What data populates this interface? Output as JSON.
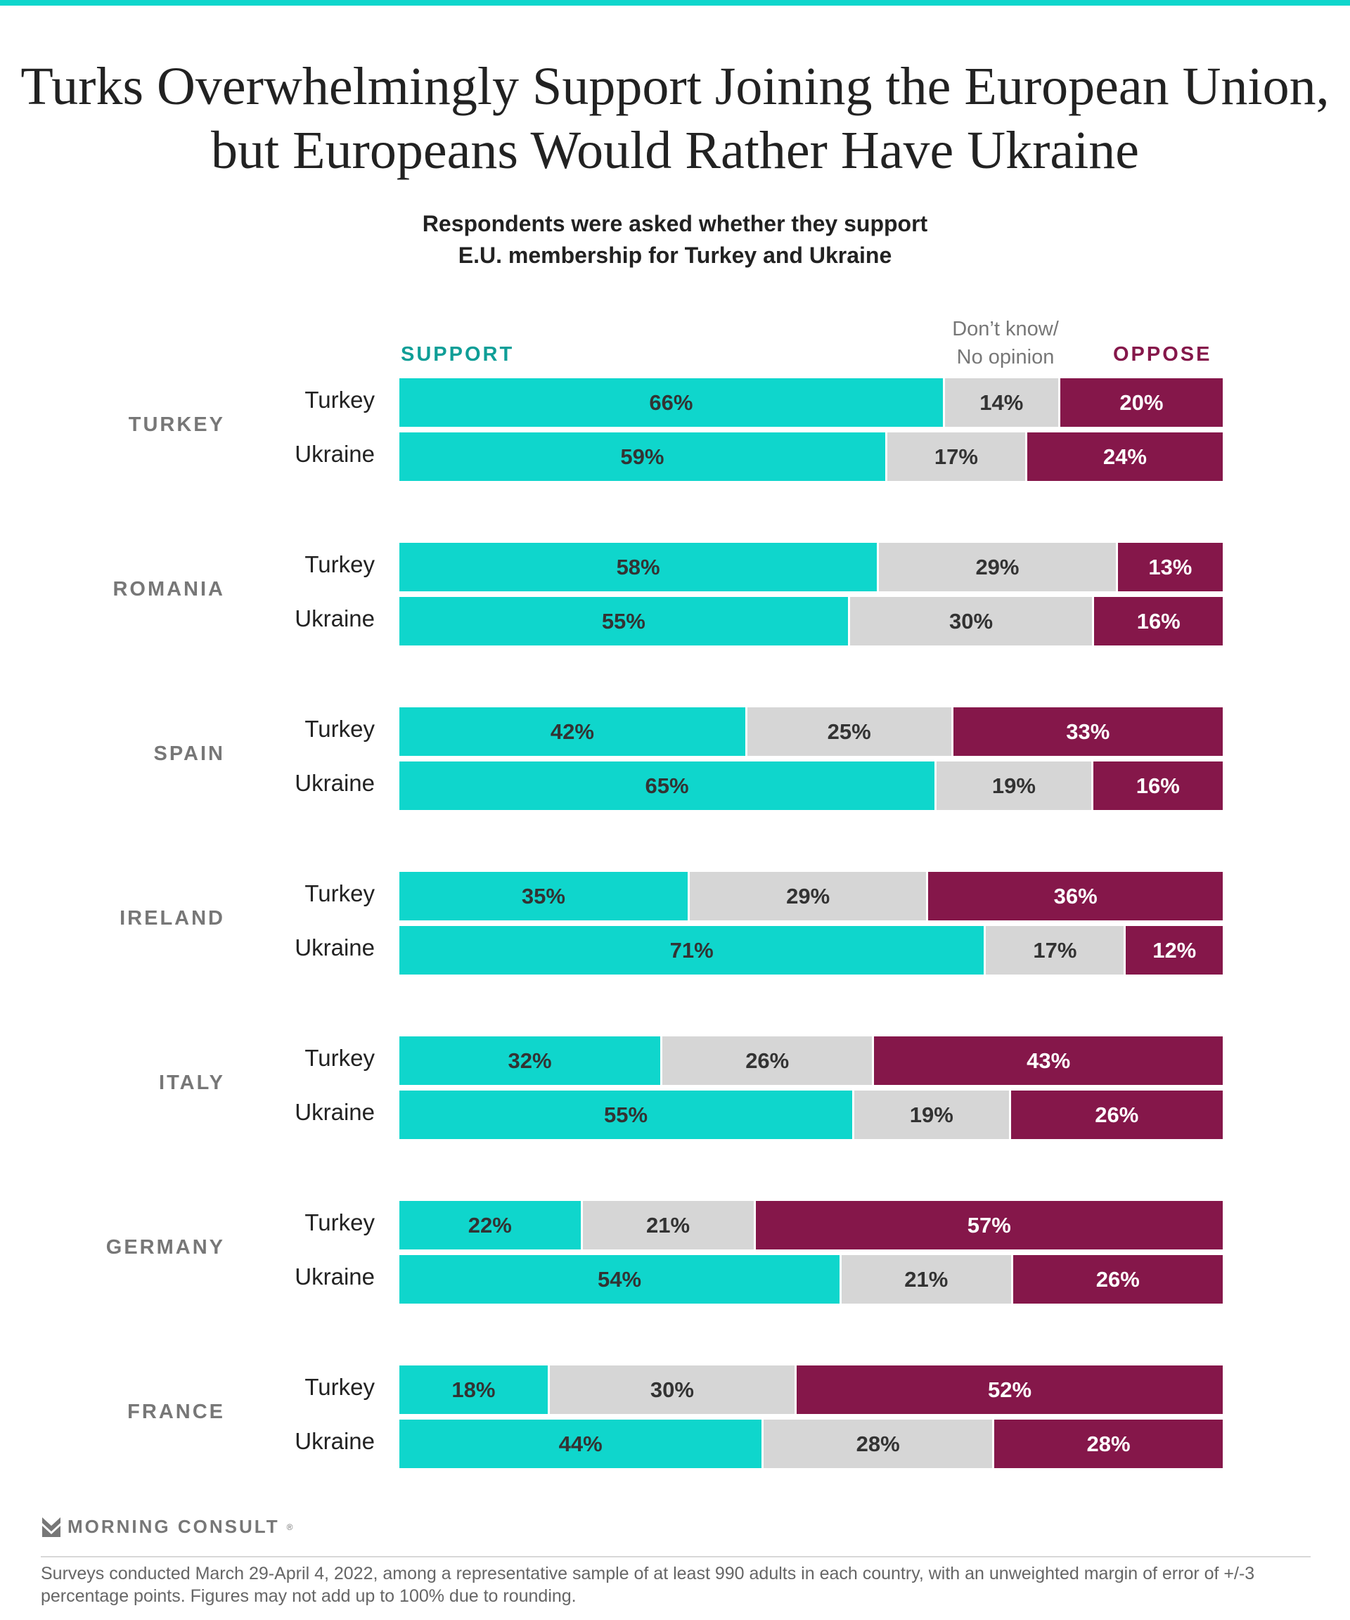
{
  "colors": {
    "accent_bar": "#0fd6cc",
    "support": "#0fd6cc",
    "support_label": "#0f9e97",
    "dont_know": "#d6d6d6",
    "oppose": "#85174a",
    "text_dark": "#333333",
    "text_on_oppose": "#ffffff"
  },
  "chart_data": {
    "type": "bar",
    "orientation": "horizontal-stacked-100",
    "title": "Turks Overwhelmingly Support Joining the European Union, but Europeans Would Rather Have Ukraine",
    "subtitle_lines": [
      "Respondents were asked whether they support",
      "E.U. membership for Turkey and Ukraine"
    ],
    "legend": {
      "support": "SUPPORT",
      "dont_know_lines": [
        "Don’t know/",
        "No opinion"
      ],
      "oppose": "OPPOSE",
      "placement": "top"
    },
    "series": [
      {
        "name": "SUPPORT"
      },
      {
        "name": "Don’t know/No opinion"
      },
      {
        "name": "OPPOSE"
      }
    ],
    "groups": [
      {
        "country": "TURKEY",
        "rows": [
          {
            "label": "Turkey",
            "values": [
              66,
              14,
              20
            ]
          },
          {
            "label": "Ukraine",
            "values": [
              59,
              17,
              24
            ]
          }
        ]
      },
      {
        "country": "ROMANIA",
        "rows": [
          {
            "label": "Turkey",
            "values": [
              58,
              29,
              13
            ]
          },
          {
            "label": "Ukraine",
            "values": [
              55,
              30,
              16
            ]
          }
        ]
      },
      {
        "country": "SPAIN",
        "rows": [
          {
            "label": "Turkey",
            "values": [
              42,
              25,
              33
            ]
          },
          {
            "label": "Ukraine",
            "values": [
              65,
              19,
              16
            ]
          }
        ]
      },
      {
        "country": "IRELAND",
        "rows": [
          {
            "label": "Turkey",
            "values": [
              35,
              29,
              36
            ]
          },
          {
            "label": "Ukraine",
            "values": [
              71,
              17,
              12
            ]
          }
        ]
      },
      {
        "country": "ITALY",
        "rows": [
          {
            "label": "Turkey",
            "values": [
              32,
              26,
              43
            ]
          },
          {
            "label": "Ukraine",
            "values": [
              55,
              19,
              26
            ]
          }
        ]
      },
      {
        "country": "GERMANY",
        "rows": [
          {
            "label": "Turkey",
            "values": [
              22,
              21,
              57
            ]
          },
          {
            "label": "Ukraine",
            "values": [
              54,
              21,
              26
            ]
          }
        ]
      },
      {
        "country": "FRANCE",
        "rows": [
          {
            "label": "Turkey",
            "values": [
              18,
              30,
              52
            ]
          },
          {
            "label": "Ukraine",
            "values": [
              44,
              28,
              28
            ]
          }
        ]
      }
    ],
    "value_suffix": "%"
  },
  "footer": {
    "brand": "MORNING CONSULT",
    "brand_mark": "®",
    "note": "Surveys conducted March 29-April 4, 2022, among a representative sample of at least 990 adults in each country, with an unweighted margin of error of +/-3 percentage points. Figures may not add up to 100% due to rounding."
  }
}
